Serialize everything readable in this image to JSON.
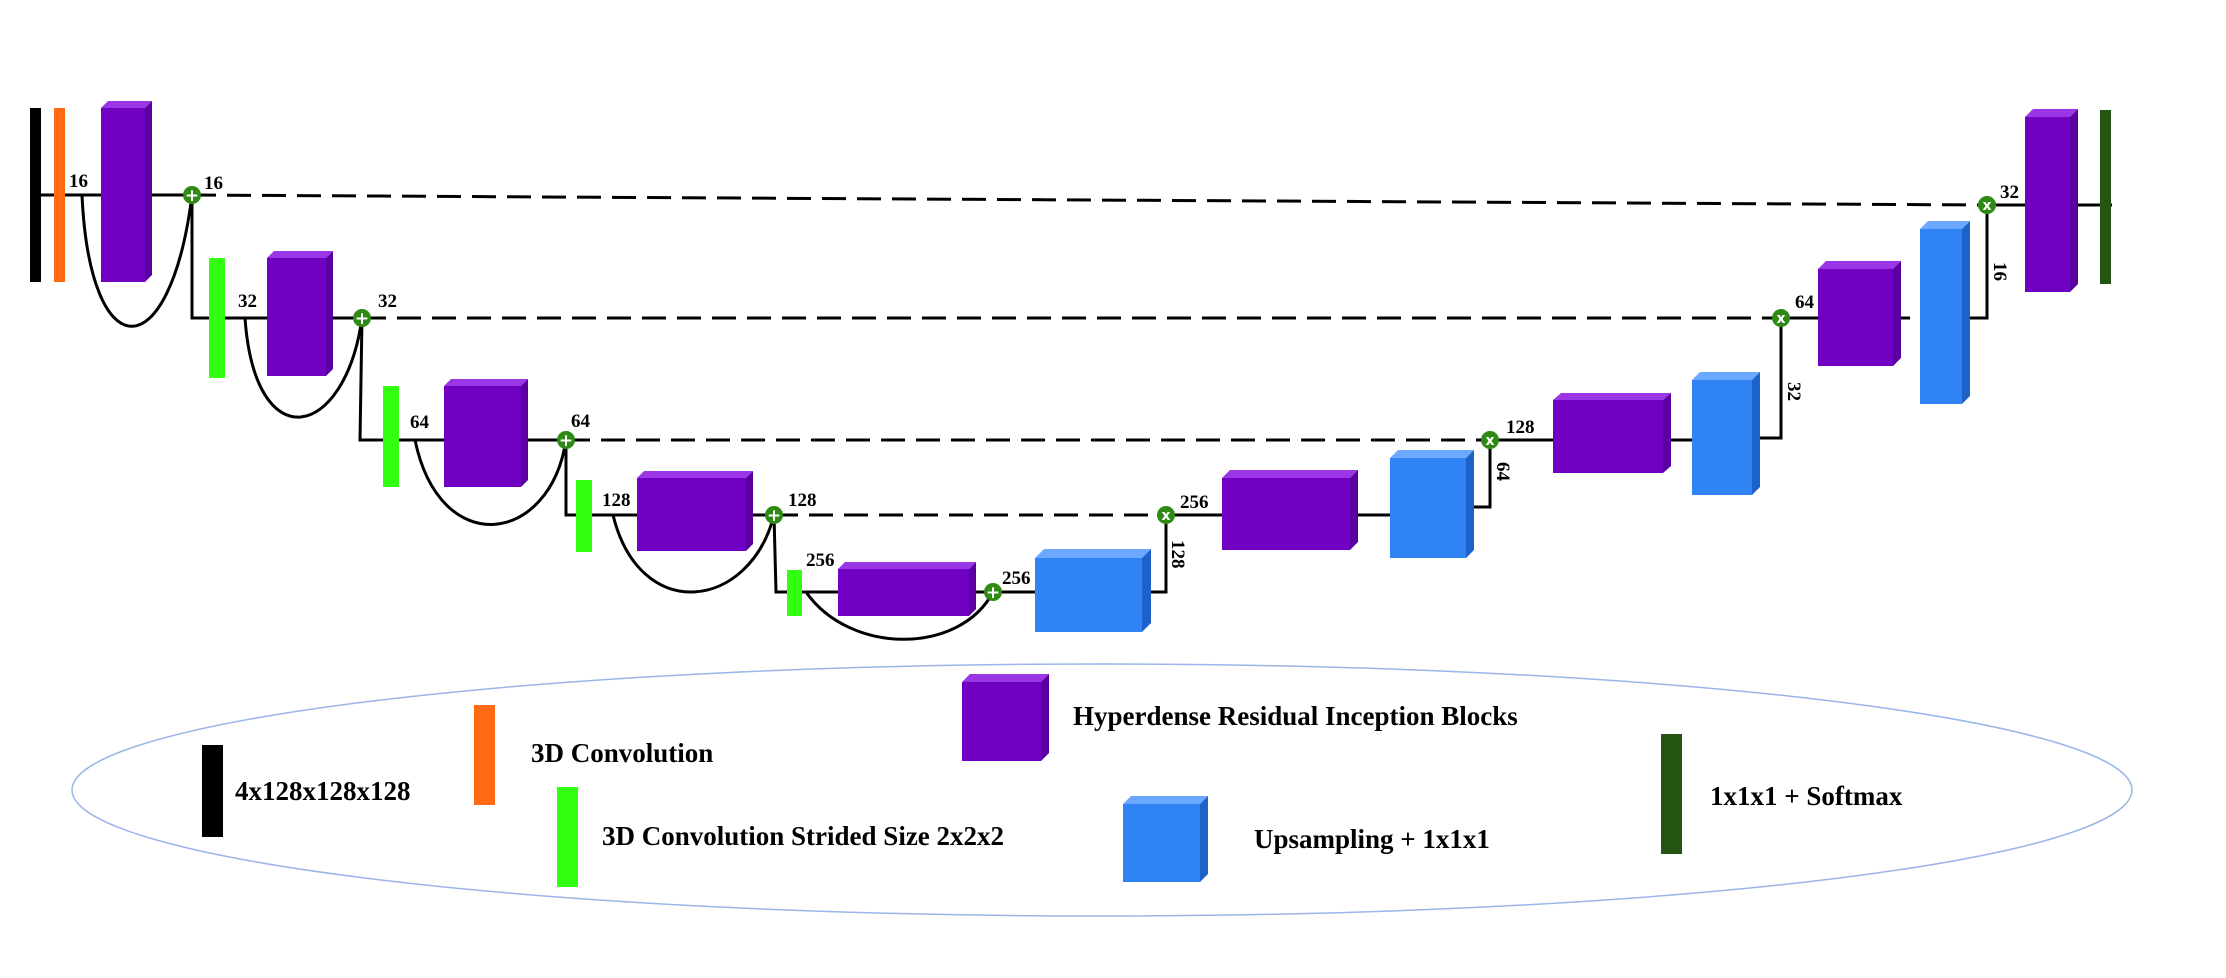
{
  "colors": {
    "input": "#000000",
    "conv3d": "#ff6a13",
    "strided": "#33ff11",
    "hyperdense": "#7000c2",
    "upsampling": "#2f83f5",
    "softmax": "#245512",
    "node": "#2e8a14",
    "legend_outline": "#9bb5ea"
  },
  "symbols": {
    "add": "+",
    "multiply": "x"
  },
  "encoder": {
    "level1": {
      "conv_out": "16",
      "add_out": "16"
    },
    "level2": {
      "strided_out": "32",
      "add_out": "32"
    },
    "level3": {
      "strided_out": "64",
      "add_out": "64"
    },
    "level4": {
      "strided_out": "128",
      "add_out": "128"
    },
    "bottleneck": {
      "strided_out": "256",
      "add_out": "256"
    }
  },
  "decoder": {
    "level4": {
      "up_out": "128",
      "mul_out": "256"
    },
    "level3": {
      "up_out": "64",
      "mul_out": "128"
    },
    "level2": {
      "up_out": "32",
      "mul_out": "64"
    },
    "level1": {
      "up_out": "16",
      "mul_out": "32"
    }
  },
  "legend": {
    "input": "4x128x128x128",
    "conv3d": "3D Convolution",
    "strided": "3D Convolution Strided Size 2x2x2",
    "hyperdense": "Hyperdense Residual Inception Blocks",
    "upsampling": "Upsampling + 1x1x1",
    "softmax": "1x1x1 + Softmax"
  }
}
